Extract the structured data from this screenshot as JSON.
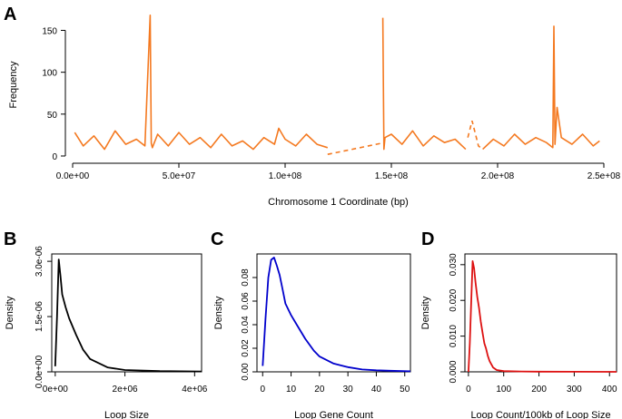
{
  "chart_data": [
    {
      "panel": "A",
      "type": "line",
      "xlabel": "Chromosome 1 Coordinate (bp)",
      "ylabel": "Frequency",
      "xlim": [
        0,
        250000000
      ],
      "ylim": [
        0,
        170
      ],
      "x_ticks": [
        0,
        50000000,
        100000000,
        150000000,
        200000000,
        250000000
      ],
      "x_tick_labels": [
        "0.0e+00",
        "5.0e+07",
        "1.0e+08",
        "1.5e+08",
        "2.0e+08",
        "2.5e+08"
      ],
      "y_ticks": [
        0,
        50,
        100,
        150
      ],
      "y_tick_labels": [
        "0",
        "50",
        "100",
        "150"
      ],
      "color": "#f47920",
      "segments": [
        {
          "x": [
            1000000,
            5000000,
            10000000,
            15000000,
            20000000,
            25000000,
            30000000,
            34000000,
            36500000,
            37000000,
            37500000,
            40000000,
            45000000,
            50000000,
            55000000,
            60000000,
            65000000,
            70000000,
            75000000,
            80000000,
            85000000,
            90000000,
            95000000,
            97000000,
            100000000,
            105000000,
            110000000,
            115000000,
            120000000
          ],
          "y": [
            28,
            12,
            24,
            8,
            30,
            14,
            20,
            12,
            168,
            15,
            10,
            26,
            12,
            28,
            14,
            22,
            10,
            26,
            12,
            18,
            8,
            22,
            14,
            33,
            20,
            12,
            26,
            14,
            10
          ]
        },
        {
          "x": [
            146000000,
            146500000,
            147000000,
            150000000,
            155000000,
            160000000,
            165000000,
            170000000,
            175000000,
            180000000,
            185000000
          ],
          "y": [
            165,
            8,
            22,
            26,
            14,
            30,
            12,
            24,
            16,
            20,
            8
          ]
        },
        {
          "x": [
            193000000,
            198000000,
            203000000,
            208000000,
            213000000,
            218000000,
            223000000,
            226000000,
            226500000,
            227000000,
            228000000,
            230000000,
            235000000,
            240000000,
            245000000,
            248000000
          ],
          "y": [
            8,
            20,
            12,
            26,
            14,
            22,
            16,
            10,
            155,
            14,
            58,
            22,
            14,
            26,
            12,
            18
          ]
        }
      ],
      "dashed_segments": [
        {
          "x": [
            120000000,
            145000000
          ],
          "y": [
            2,
            15
          ]
        },
        {
          "x": [
            186000000,
            188000000,
            191000000,
            193000000
          ],
          "y": [
            22,
            42,
            12,
            8
          ]
        }
      ]
    },
    {
      "panel": "B",
      "type": "line",
      "xlabel": "Loop Size",
      "ylabel": "Density",
      "xlim": [
        -100000,
        4200000
      ],
      "ylim": [
        0,
        3.2e-06
      ],
      "x_ticks": [
        0,
        2000000,
        4000000
      ],
      "x_tick_labels": [
        "0e+00",
        "2e+06",
        "4e+06"
      ],
      "y_ticks": [
        0,
        1.5e-06,
        3e-06
      ],
      "y_tick_labels": [
        "0.0e+00",
        "1.5e-06",
        "3.0e-06"
      ],
      "color": "#000000",
      "x": [
        0,
        50000,
        100000,
        150000,
        200000,
        300000,
        400000,
        600000,
        800000,
        1000000,
        1500000,
        2000000,
        3000000,
        4200000
      ],
      "y": [
        1.5e-07,
        1.5e-06,
        3.05e-06,
        2.6e-06,
        2.1e-06,
        1.75e-06,
        1.45e-06,
        1e-06,
        6e-07,
        3.5e-07,
        1.2e-07,
        5e-08,
        2e-08,
        1e-08
      ]
    },
    {
      "panel": "C",
      "type": "line",
      "xlabel": "Loop Gene Count",
      "ylabel": "Density",
      "xlim": [
        -2,
        52
      ],
      "ylim": [
        0,
        0.1
      ],
      "x_ticks": [
        0,
        10,
        20,
        30,
        40,
        50
      ],
      "x_tick_labels": [
        "0",
        "10",
        "20",
        "30",
        "40",
        "50"
      ],
      "y_ticks": [
        0,
        0.02,
        0.04,
        0.06,
        0.08
      ],
      "y_tick_labels": [
        "0.00",
        "0.02",
        "0.04",
        "0.06",
        "0.08"
      ],
      "color": "#0000cc",
      "x": [
        0,
        1,
        2,
        3,
        4,
        5,
        6,
        7,
        8,
        10,
        12,
        15,
        18,
        20,
        25,
        30,
        35,
        40,
        45,
        52
      ],
      "y": [
        0.005,
        0.045,
        0.08,
        0.095,
        0.097,
        0.09,
        0.082,
        0.07,
        0.058,
        0.048,
        0.04,
        0.028,
        0.018,
        0.013,
        0.007,
        0.004,
        0.002,
        0.0013,
        0.0009,
        0.0005
      ]
    },
    {
      "panel": "D",
      "type": "line",
      "xlabel": "Loop Count/100kb of Loop Size",
      "ylabel": "Density",
      "xlim": [
        -10,
        420
      ],
      "ylim": [
        0,
        0.033
      ],
      "x_ticks": [
        0,
        100,
        200,
        300,
        400
      ],
      "x_tick_labels": [
        "0",
        "100",
        "200",
        "300",
        "400"
      ],
      "y_ticks": [
        0,
        0.01,
        0.02,
        0.03
      ],
      "y_tick_labels": [
        "0.000",
        "0.010",
        "0.020",
        "0.030"
      ],
      "color": "#dd1111",
      "x": [
        0,
        4,
        8,
        12,
        16,
        20,
        25,
        30,
        35,
        40,
        45,
        50,
        55,
        60,
        70,
        80,
        100,
        150,
        200,
        300,
        420
      ],
      "y": [
        0.0,
        0.008,
        0.02,
        0.031,
        0.029,
        0.025,
        0.021,
        0.018,
        0.014,
        0.011,
        0.008,
        0.0065,
        0.0045,
        0.003,
        0.0012,
        0.0005,
        0.0002,
        0.0001,
        5e-05,
        2e-05,
        1e-05
      ]
    }
  ]
}
